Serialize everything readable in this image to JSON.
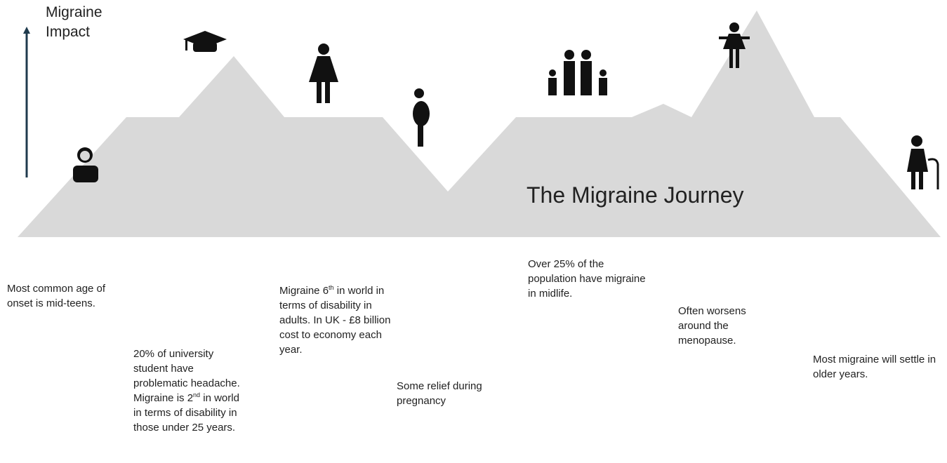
{
  "axis_label": "Migraine Impact",
  "title": "The Migraine Journey",
  "stages": [
    {
      "parts": [
        "Most common age of onset is mid-teens."
      ]
    },
    {
      "parts": [
        "20% of university student have problematic headache. Migraine is 2",
        "nd",
        " in world in terms of disability in those under 25 years."
      ]
    },
    {
      "parts": [
        "Migraine 6",
        "th",
        " in world in terms of disability in adults. In UK - £8 billion cost to economy each year."
      ]
    },
    {
      "parts": [
        "Some relief during pregnancy"
      ]
    },
    {
      "parts": [
        "Over 25% of the population have migraine in midlife."
      ]
    },
    {
      "parts": [
        "Often worsens around the menopause."
      ]
    },
    {
      "parts": [
        "Most migraine will settle in older years."
      ]
    }
  ]
}
